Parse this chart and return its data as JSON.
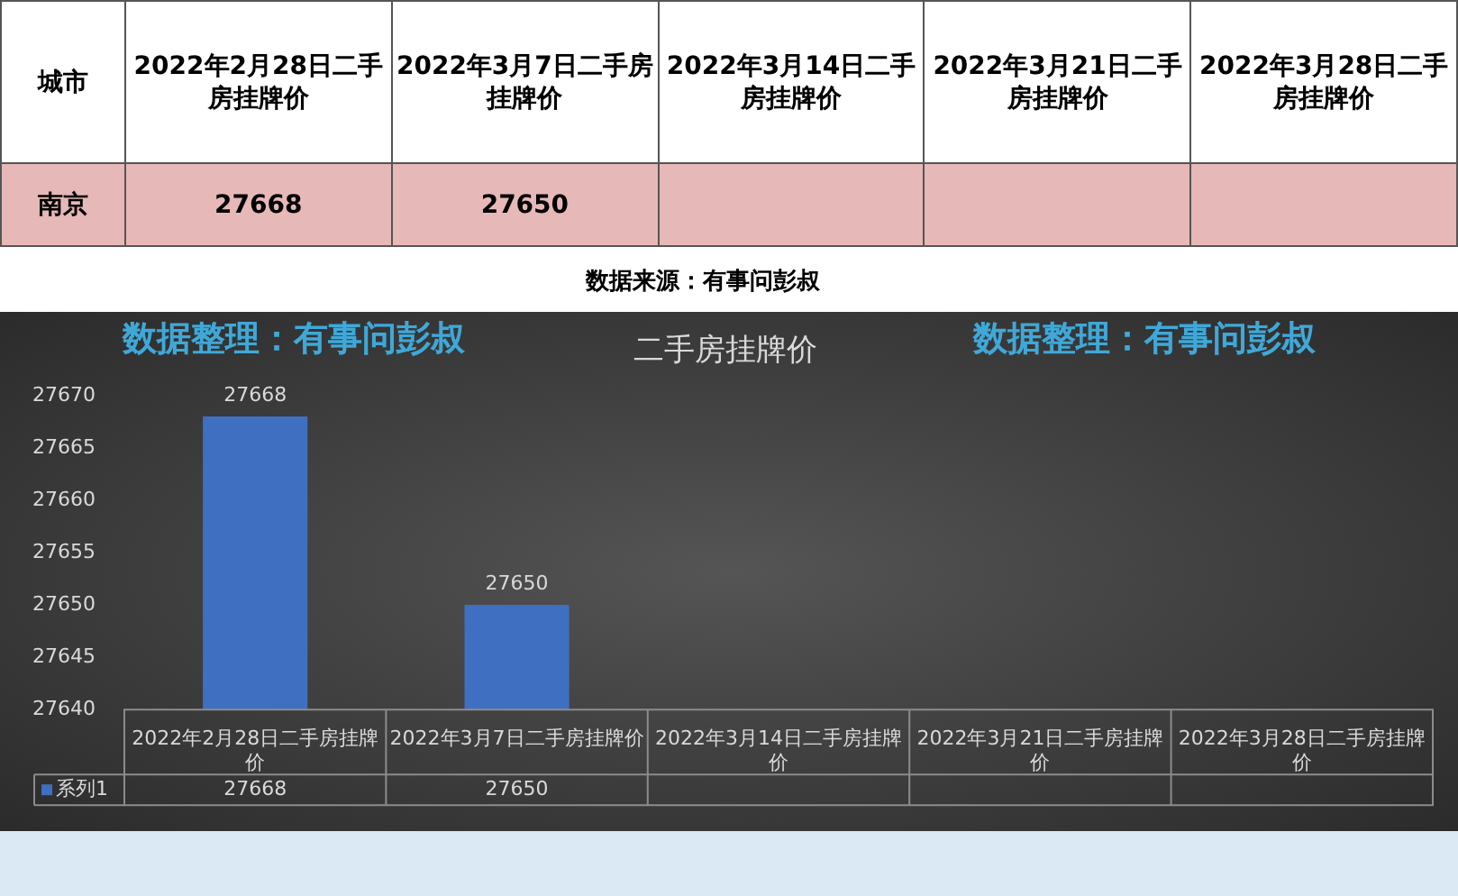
{
  "chart_data": {
    "type": "bar",
    "title": "二手房挂牌价",
    "categories": [
      "2022年2月28日二手房挂牌价",
      "2022年3月7日二手房挂牌价",
      "2022年3月14日二手房挂牌价",
      "2022年3月21日二手房挂牌价",
      "2022年3月28日二手房挂牌价"
    ],
    "series": [
      {
        "name": "系列1",
        "color": "#3f6fc0",
        "values": [
          27668,
          27650,
          null,
          null,
          null
        ],
        "value_labels": [
          "27668",
          "27650",
          null,
          null,
          null
        ]
      }
    ],
    "ylim": [
      27640,
      27670
    ],
    "yticks": [
      27640,
      27645,
      27650,
      27655,
      27660,
      27665,
      27670
    ],
    "annotations": [
      "城市",
      "南京",
      "数据来源：有事问彭叔",
      "数据整理：有事问彭叔",
      "数据整理：有事问彭叔"
    ]
  }
}
